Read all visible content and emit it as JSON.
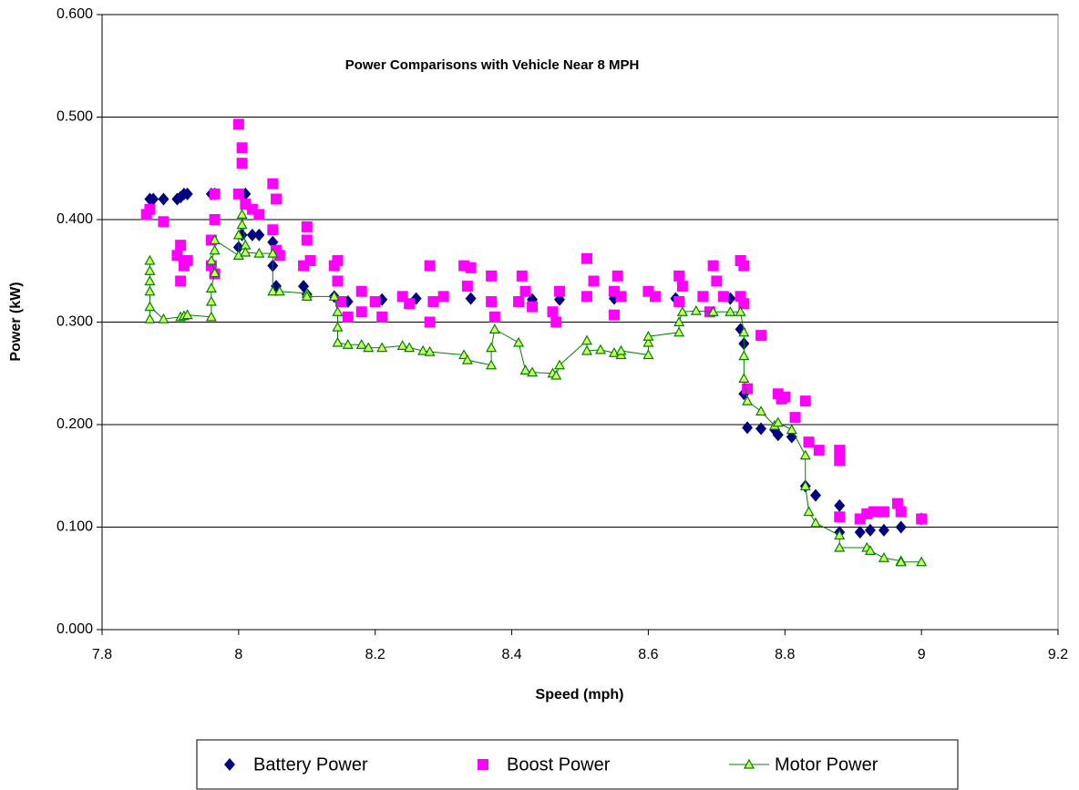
{
  "chart_data": {
    "type": "scatter",
    "title": "Power Comparisons with Vehicle Near 8 MPH",
    "x_label": "Speed (mph)",
    "y_label": "Power (kW)",
    "xlim": [
      7.8,
      9.2
    ],
    "xticks": [
      7.8,
      8,
      8.2,
      8.4,
      8.6,
      8.8,
      9,
      9.2
    ],
    "ylim": [
      0,
      0.6
    ],
    "yticks": [
      {
        "value": 0,
        "label": "0.000"
      },
      {
        "value": 0.1,
        "label": "0.100"
      },
      {
        "value": 0.2,
        "label": "0.200"
      },
      {
        "value": 0.3,
        "label": "0.300"
      },
      {
        "value": 0.4,
        "label": "0.400"
      },
      {
        "value": 0.5,
        "label": "0.500"
      },
      {
        "value": 0.6,
        "label": "0.600"
      }
    ],
    "grid": true,
    "legend": "bottom",
    "series": [
      {
        "name": "Battery Power",
        "color": "#000080",
        "marker": "diamond",
        "line": false,
        "x": [
          7.87,
          7.875,
          7.89,
          7.91,
          7.915,
          7.92,
          7.925,
          7.96,
          7.965,
          8.0,
          8.005,
          8.01,
          8.02,
          8.03,
          8.05,
          8.05,
          8.055,
          8.095,
          8.1,
          8.14,
          8.16,
          8.21,
          8.26,
          8.34,
          8.43,
          8.47,
          8.55,
          8.64,
          8.72,
          8.735,
          8.74,
          8.74,
          8.745,
          8.765,
          8.785,
          8.79,
          8.81,
          8.83,
          8.845,
          8.88,
          8.88,
          8.91,
          8.925,
          8.945,
          8.97,
          9.0
        ],
        "values": [
          0.42,
          0.42,
          0.42,
          0.42,
          0.422,
          0.425,
          0.425,
          0.425,
          0.425,
          0.373,
          0.385,
          0.425,
          0.385,
          0.385,
          0.378,
          0.355,
          0.335,
          0.335,
          0.327,
          0.325,
          0.32,
          0.322,
          0.323,
          0.323,
          0.322,
          0.322,
          0.323,
          0.323,
          0.323,
          0.293,
          0.279,
          0.23,
          0.197,
          0.196,
          0.195,
          0.19,
          0.188,
          0.14,
          0.131,
          0.121,
          0.095,
          0.095,
          0.097,
          0.097,
          0.1,
          0.108
        ]
      },
      {
        "name": "Boost Power",
        "color": "#ff00ff",
        "marker": "square",
        "line": false,
        "x": [
          7.865,
          7.87,
          7.89,
          7.91,
          7.915,
          7.915,
          7.92,
          7.925,
          7.96,
          7.965,
          7.965,
          7.96,
          7.965,
          8.0,
          8.005,
          8.005,
          8.0,
          8.01,
          8.02,
          8.03,
          8.05,
          8.055,
          8.05,
          8.055,
          8.06,
          8.1,
          8.1,
          8.095,
          8.105,
          8.14,
          8.145,
          8.145,
          8.15,
          8.16,
          8.18,
          8.18,
          8.2,
          8.21,
          8.24,
          8.25,
          8.28,
          8.28,
          8.285,
          8.3,
          8.33,
          8.335,
          8.34,
          8.37,
          8.37,
          8.375,
          8.41,
          8.415,
          8.42,
          8.43,
          8.46,
          8.465,
          8.47,
          8.51,
          8.51,
          8.52,
          8.55,
          8.555,
          8.56,
          8.55,
          8.6,
          8.61,
          8.645,
          8.65,
          8.645,
          8.68,
          8.69,
          8.695,
          8.7,
          8.71,
          8.735,
          8.74,
          8.735,
          8.74,
          8.745,
          8.765,
          8.79,
          8.795,
          8.8,
          8.815,
          8.83,
          8.835,
          8.85,
          8.88,
          8.88,
          8.88,
          8.91,
          8.92,
          8.93,
          8.945,
          8.965,
          8.97,
          9.0
        ],
        "values": [
          0.405,
          0.41,
          0.398,
          0.365,
          0.375,
          0.34,
          0.355,
          0.36,
          0.38,
          0.425,
          0.4,
          0.355,
          0.347,
          0.493,
          0.47,
          0.455,
          0.425,
          0.415,
          0.41,
          0.405,
          0.435,
          0.42,
          0.39,
          0.37,
          0.365,
          0.393,
          0.38,
          0.355,
          0.36,
          0.355,
          0.36,
          0.34,
          0.32,
          0.305,
          0.33,
          0.31,
          0.32,
          0.305,
          0.325,
          0.318,
          0.355,
          0.3,
          0.32,
          0.325,
          0.355,
          0.335,
          0.353,
          0.345,
          0.32,
          0.305,
          0.32,
          0.345,
          0.33,
          0.315,
          0.31,
          0.3,
          0.33,
          0.362,
          0.325,
          0.34,
          0.33,
          0.345,
          0.325,
          0.307,
          0.33,
          0.325,
          0.345,
          0.335,
          0.32,
          0.325,
          0.31,
          0.355,
          0.34,
          0.325,
          0.36,
          0.355,
          0.325,
          0.318,
          0.235,
          0.287,
          0.23,
          0.225,
          0.227,
          0.207,
          0.223,
          0.183,
          0.175,
          0.175,
          0.165,
          0.11,
          0.108,
          0.113,
          0.115,
          0.115,
          0.123,
          0.115,
          0.108
        ]
      },
      {
        "name": "Motor Power",
        "color": "#008000",
        "marker": "triangle",
        "line": true,
        "x": [
          7.87,
          7.87,
          7.87,
          7.87,
          7.87,
          7.87,
          7.89,
          7.915,
          7.92,
          7.925,
          7.96,
          7.96,
          7.96,
          7.965,
          7.96,
          7.965,
          7.965,
          8.0,
          8.0,
          8.005,
          8.005,
          8.01,
          8.01,
          8.03,
          8.05,
          8.05,
          8.06,
          8.1,
          8.1,
          8.14,
          8.145,
          8.145,
          8.145,
          8.16,
          8.18,
          8.19,
          8.21,
          8.24,
          8.25,
          8.27,
          8.28,
          8.33,
          8.335,
          8.37,
          8.37,
          8.375,
          8.41,
          8.42,
          8.43,
          8.46,
          8.465,
          8.47,
          8.51,
          8.51,
          8.53,
          8.55,
          8.56,
          8.56,
          8.6,
          8.6,
          8.6,
          8.645,
          8.645,
          8.65,
          8.67,
          8.695,
          8.72,
          8.735,
          8.74,
          8.74,
          8.74,
          8.745,
          8.765,
          8.785,
          8.79,
          8.81,
          8.83,
          8.83,
          8.835,
          8.845,
          8.88,
          8.88,
          8.92,
          8.925,
          8.945,
          8.97,
          8.97,
          9.0
        ],
        "values": [
          0.303,
          0.36,
          0.35,
          0.34,
          0.33,
          0.315,
          0.303,
          0.305,
          0.306,
          0.307,
          0.305,
          0.32,
          0.333,
          0.348,
          0.36,
          0.37,
          0.38,
          0.365,
          0.385,
          0.395,
          0.405,
          0.375,
          0.368,
          0.367,
          0.367,
          0.33,
          0.33,
          0.328,
          0.325,
          0.325,
          0.31,
          0.295,
          0.28,
          0.278,
          0.278,
          0.275,
          0.275,
          0.277,
          0.275,
          0.272,
          0.271,
          0.268,
          0.263,
          0.258,
          0.275,
          0.293,
          0.28,
          0.253,
          0.251,
          0.25,
          0.248,
          0.258,
          0.282,
          0.272,
          0.273,
          0.27,
          0.268,
          0.272,
          0.268,
          0.28,
          0.286,
          0.29,
          0.3,
          0.31,
          0.311,
          0.31,
          0.31,
          0.31,
          0.29,
          0.267,
          0.245,
          0.223,
          0.213,
          0.199,
          0.202,
          0.195,
          0.17,
          0.14,
          0.115,
          0.104,
          0.092,
          0.08,
          0.08,
          0.077,
          0.07,
          0.067,
          0.066,
          0.066
        ]
      }
    ]
  }
}
